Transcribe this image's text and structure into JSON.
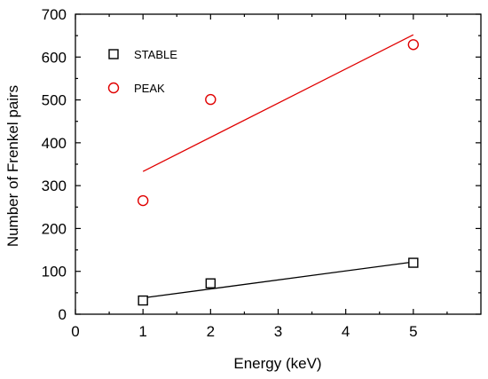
{
  "chart_data": {
    "type": "scatter",
    "xlabel": "Energy (keV)",
    "ylabel": "Number of Frenkel pairs",
    "xlim": [
      0,
      6
    ],
    "ylim": [
      0,
      700
    ],
    "xticks": [
      "0",
      "1",
      "2",
      "3",
      "4",
      "5"
    ],
    "yticks": [
      "0",
      "100",
      "200",
      "300",
      "400",
      "500",
      "600",
      "700"
    ],
    "legend_position": "top-left",
    "grid": false,
    "series": [
      {
        "name": "STABLE",
        "marker": "square",
        "color": "#000000",
        "points": [
          {
            "x": 1,
            "y": 32
          },
          {
            "x": 2,
            "y": 72
          },
          {
            "x": 5,
            "y": 120
          }
        ],
        "fit": {
          "x": [
            1,
            5
          ],
          "y": [
            38,
            122
          ]
        }
      },
      {
        "name": "PEAK",
        "marker": "circle",
        "color": "#e00000",
        "points": [
          {
            "x": 1,
            "y": 265
          },
          {
            "x": 2,
            "y": 501
          },
          {
            "x": 5,
            "y": 629
          }
        ],
        "fit": {
          "x": [
            1,
            5
          ],
          "y": [
            333,
            652
          ]
        }
      }
    ]
  }
}
